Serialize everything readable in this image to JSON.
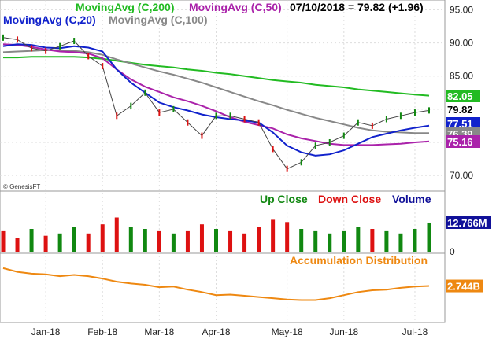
{
  "chart_data": {
    "type": "line",
    "price_panel": {
      "legend": {
        "ma200": "MovingAvg (C,200)",
        "ma50": "MovingAvg (C,50)",
        "ma20": "MovingAvg (C,20)",
        "ma100": "MovingAvg (C,100)",
        "quote": "07/10/2018 = 79.82 (+1.96)"
      },
      "watermark": "© GenesisFT",
      "ylim": [
        68,
        96
      ],
      "yticks": [
        "95.00",
        "90.00",
        "85.00",
        "80.00",
        "75.00",
        "70.00"
      ],
      "ytick_values": [
        95,
        90,
        85,
        80,
        75,
        70
      ],
      "last_values": {
        "ma200": "82.05",
        "close": "79.82",
        "ma20": "77.51",
        "ma100": "76.39",
        "ma50": "75.16"
      },
      "colors": {
        "ma200": "#22bb22",
        "ma50": "#aa22aa",
        "ma20": "#1122cc",
        "ma100": "#888888",
        "up": "#118811",
        "down": "#dd1111"
      },
      "x": [
        "12/15",
        "12/22",
        "12/29",
        "01/05",
        "01/12",
        "01/19",
        "01/26",
        "02/02",
        "02/09",
        "02/16",
        "02/23",
        "03/02",
        "03/09",
        "03/16",
        "03/23",
        "03/30",
        "04/06",
        "04/13",
        "04/20",
        "04/27",
        "05/04",
        "05/11",
        "05/18",
        "05/25",
        "06/01",
        "06/08",
        "06/15",
        "06/22",
        "06/29",
        "07/06",
        "07/10"
      ],
      "series": [
        {
          "key": "close",
          "values": [
            90.8,
            90.5,
            89.2,
            88.8,
            89.5,
            90.3,
            88.0,
            86.5,
            79.0,
            80.5,
            82.5,
            79.5,
            80.0,
            78.0,
            76.0,
            79.0,
            79.0,
            78.5,
            78.0,
            74.0,
            71.0,
            72.0,
            74.5,
            75.0,
            76.0,
            78.0,
            77.5,
            78.5,
            79.0,
            79.5,
            79.82
          ]
        },
        {
          "key": "ma20",
          "values": [
            89.5,
            89.8,
            89.7,
            89.3,
            89.2,
            89.5,
            89.3,
            88.7,
            86.0,
            84.0,
            82.5,
            81.0,
            80.3,
            79.8,
            79.2,
            78.8,
            78.5,
            78.3,
            78.0,
            76.5,
            74.5,
            73.5,
            73.0,
            73.2,
            73.8,
            74.8,
            75.8,
            76.3,
            76.8,
            77.2,
            77.51
          ]
        },
        {
          "key": "ma50",
          "values": [
            89.8,
            89.7,
            89.4,
            89.0,
            88.7,
            88.6,
            88.4,
            87.7,
            86.0,
            84.5,
            83.4,
            82.6,
            81.8,
            81.2,
            80.5,
            79.7,
            78.8,
            78.1,
            77.6,
            77.1,
            76.2,
            75.6,
            75.2,
            74.8,
            74.6,
            74.6,
            74.6,
            74.7,
            74.8,
            75.0,
            75.16
          ]
        },
        {
          "key": "ma100",
          "values": [
            88.6,
            88.7,
            88.8,
            88.9,
            88.9,
            88.8,
            88.6,
            88.2,
            87.5,
            86.9,
            86.3,
            85.7,
            85.2,
            84.6,
            84.0,
            83.3,
            82.6,
            81.9,
            81.2,
            80.6,
            79.9,
            79.3,
            78.7,
            78.2,
            77.7,
            77.2,
            76.8,
            76.6,
            76.5,
            76.4,
            76.39
          ]
        },
        {
          "key": "ma200",
          "values": [
            87.8,
            87.8,
            87.9,
            87.9,
            87.9,
            87.9,
            87.8,
            87.6,
            87.3,
            87.0,
            86.7,
            86.5,
            86.3,
            86.0,
            85.8,
            85.5,
            85.3,
            85.0,
            84.7,
            84.4,
            84.2,
            84.0,
            83.7,
            83.5,
            83.3,
            83.0,
            82.8,
            82.6,
            82.4,
            82.2,
            82.05
          ]
        }
      ]
    },
    "volume_panel": {
      "legend": {
        "up": "Up Close",
        "down": "Down Close",
        "volume": "Volume"
      },
      "colors": {
        "up": "#118811",
        "down": "#dd1111",
        "volume": "#111199"
      },
      "ylim": [
        0,
        20
      ],
      "yticks": [
        "0"
      ],
      "ytick_values": [
        0
      ],
      "last_value": "12.766M",
      "values": [
        9,
        6,
        10,
        7,
        8,
        11,
        8,
        12,
        15,
        11,
        10,
        9,
        8,
        9,
        12,
        10,
        9,
        8,
        11,
        14,
        13,
        10,
        9,
        8,
        9,
        11,
        10,
        9,
        8,
        10,
        12.766
      ],
      "directions": [
        "down",
        "down",
        "up",
        "down",
        "up",
        "up",
        "down",
        "down",
        "down",
        "up",
        "up",
        "down",
        "up",
        "down",
        "down",
        "up",
        "down",
        "down",
        "down",
        "down",
        "down",
        "up",
        "up",
        "up",
        "up",
        "up",
        "down",
        "up",
        "up",
        "up",
        "up"
      ]
    },
    "accum_panel": {
      "title": "Accumulation Distribution",
      "color": "#ee8811",
      "last_value": "2.744B",
      "ylim": [
        0,
        10
      ],
      "values": [
        8.6,
        8.0,
        7.7,
        7.6,
        7.3,
        7.5,
        7.3,
        6.9,
        6.4,
        6.1,
        5.9,
        5.5,
        5.6,
        5.1,
        4.7,
        4.2,
        4.3,
        4.1,
        3.9,
        3.7,
        3.5,
        3.4,
        3.4,
        3.7,
        4.2,
        4.7,
        5.0,
        5.1,
        5.4,
        5.6,
        5.7
      ]
    },
    "x_axis": {
      "ticks": [
        "Jan-18",
        "Feb-18",
        "Mar-18",
        "Apr-18",
        "May-18",
        "Jun-18",
        "Jul-18"
      ],
      "tick_dates": [
        "01/05",
        "02/02",
        "03/02",
        "03/30",
        "05/04",
        "06/01",
        "07/06"
      ]
    }
  }
}
